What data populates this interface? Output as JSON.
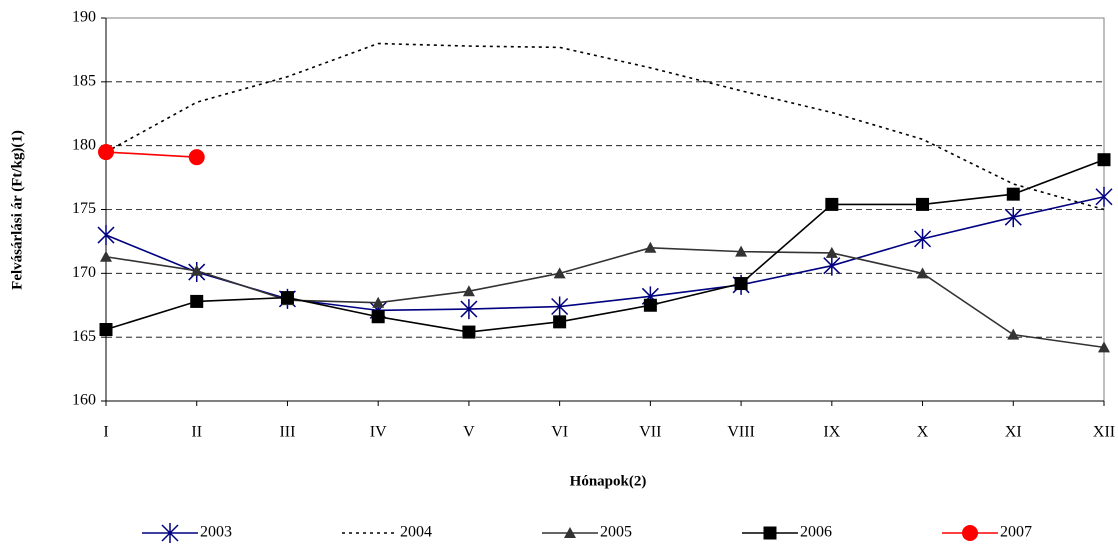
{
  "chart_data": {
    "type": "line",
    "x_label": "Hónapok(2)",
    "y_label": "Felvásárlási ár (Ft/kg)(1)",
    "categories": [
      "I",
      "II",
      "III",
      "IV",
      "V",
      "VI",
      "VII",
      "VIII",
      "IX",
      "X",
      "XI",
      "XII"
    ],
    "series": [
      {
        "name": "2003",
        "color": "#000080",
        "marker": "asterisk",
        "line_style": "solid",
        "values": [
          173,
          170.1,
          168,
          167.1,
          167.2,
          167.4,
          168.2,
          169.1,
          170.6,
          172.7,
          174.4,
          176
        ]
      },
      {
        "name": "2004",
        "color": "#000000",
        "marker": "none",
        "line_style": "dotted",
        "values": [
          179.5,
          183.4,
          185.4,
          188,
          187.8,
          187.7,
          186.1,
          184.3,
          182.6,
          180.5,
          177,
          175
        ]
      },
      {
        "name": "2005",
        "color": "#333333",
        "marker": "triangle",
        "line_style": "solid",
        "values": [
          171.3,
          170.2,
          167.9,
          167.7,
          168.6,
          170,
          172,
          171.7,
          171.6,
          170,
          165.2,
          164.2
        ]
      },
      {
        "name": "2006",
        "color": "#000000",
        "marker": "square",
        "line_style": "solid",
        "values": [
          165.6,
          167.8,
          168.1,
          166.6,
          165.4,
          166.2,
          167.5,
          169.2,
          175.4,
          175.4,
          176.2,
          178.9
        ]
      },
      {
        "name": "2007",
        "color": "#ff0000",
        "marker": "circle",
        "line_style": "solid",
        "values": [
          179.5,
          179.1,
          null,
          null,
          null,
          null,
          null,
          null,
          null,
          null,
          null,
          null
        ]
      }
    ],
    "ylim": [
      160,
      190
    ],
    "yticks": [
      160,
      165,
      170,
      175,
      180,
      185,
      190
    ],
    "grid": true,
    "legend": "bottom"
  }
}
